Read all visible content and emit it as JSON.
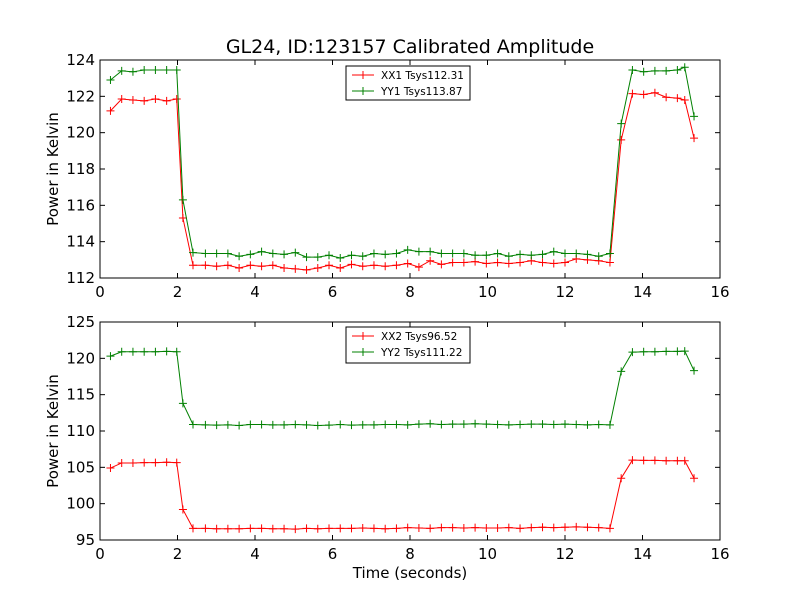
{
  "figure": {
    "title": "GL24, ID:123157 Calibrated Amplitude"
  },
  "chart_data": [
    {
      "type": "line",
      "ylabel": "Power in Kelvin",
      "xlabel": "",
      "xlim": [
        0,
        16
      ],
      "ylim": [
        112,
        124
      ],
      "xticks": [
        0,
        2,
        4,
        6,
        8,
        10,
        12,
        14,
        16
      ],
      "yticks": [
        112,
        114,
        116,
        118,
        120,
        122,
        124
      ],
      "legend_position": "top-center",
      "x": [
        0.27,
        0.56,
        0.85,
        1.14,
        1.43,
        1.72,
        1.98,
        2.14,
        2.4,
        2.72,
        3.01,
        3.3,
        3.59,
        3.88,
        4.17,
        4.46,
        4.75,
        5.04,
        5.33,
        5.62,
        5.91,
        6.2,
        6.49,
        6.78,
        7.07,
        7.36,
        7.65,
        7.94,
        8.23,
        8.52,
        8.81,
        9.1,
        9.39,
        9.68,
        9.97,
        10.26,
        10.55,
        10.84,
        11.13,
        11.42,
        11.71,
        12.0,
        12.29,
        12.58,
        12.87,
        13.16,
        13.45,
        13.74,
        14.03,
        14.32,
        14.61,
        14.9,
        15.09,
        15.33
      ],
      "series": [
        {
          "name": "XX1 Tsys112.31",
          "color": "#ff0000",
          "values": [
            121.2,
            121.85,
            121.8,
            121.75,
            121.85,
            121.75,
            121.85,
            115.3,
            112.7,
            112.7,
            112.65,
            112.7,
            112.55,
            112.7,
            112.65,
            112.7,
            112.55,
            112.5,
            112.45,
            112.55,
            112.7,
            112.55,
            112.75,
            112.65,
            112.7,
            112.65,
            112.7,
            112.8,
            112.6,
            112.95,
            112.75,
            112.85,
            112.85,
            112.9,
            112.8,
            112.85,
            112.8,
            112.85,
            112.95,
            112.85,
            112.8,
            112.85,
            113.05,
            113.0,
            112.95,
            112.85,
            119.6,
            122.15,
            122.1,
            122.2,
            121.95,
            121.9,
            121.8,
            119.7
          ]
        },
        {
          "name": "YY1 Tsys113.87",
          "color": "#008000",
          "values": [
            122.9,
            123.4,
            123.35,
            123.45,
            123.45,
            123.45,
            123.45,
            116.3,
            113.4,
            113.35,
            113.35,
            113.35,
            113.2,
            113.3,
            113.45,
            113.35,
            113.3,
            113.4,
            113.15,
            113.15,
            113.25,
            113.1,
            113.25,
            113.2,
            113.35,
            113.3,
            113.35,
            113.55,
            113.45,
            113.45,
            113.35,
            113.35,
            113.35,
            113.25,
            113.25,
            113.35,
            113.2,
            113.3,
            113.25,
            113.3,
            113.45,
            113.35,
            113.35,
            113.3,
            113.2,
            113.35,
            120.5,
            123.45,
            123.35,
            123.4,
            123.4,
            123.45,
            123.6,
            120.9
          ]
        }
      ]
    },
    {
      "type": "line",
      "ylabel": "Power in Kelvin",
      "xlabel": "Time (seconds)",
      "xlim": [
        0,
        16
      ],
      "ylim": [
        95,
        125
      ],
      "xticks": [
        0,
        2,
        4,
        6,
        8,
        10,
        12,
        14,
        16
      ],
      "yticks": [
        95,
        100,
        105,
        110,
        115,
        120,
        125
      ],
      "legend_position": "top-center",
      "x": [
        0.27,
        0.56,
        0.85,
        1.14,
        1.43,
        1.72,
        1.98,
        2.14,
        2.4,
        2.72,
        3.01,
        3.3,
        3.59,
        3.88,
        4.17,
        4.46,
        4.75,
        5.04,
        5.33,
        5.62,
        5.91,
        6.2,
        6.49,
        6.78,
        7.07,
        7.36,
        7.65,
        7.94,
        8.23,
        8.52,
        8.81,
        9.1,
        9.39,
        9.68,
        9.97,
        10.26,
        10.55,
        10.84,
        11.13,
        11.42,
        11.71,
        12.0,
        12.29,
        12.58,
        12.87,
        13.16,
        13.45,
        13.74,
        14.03,
        14.32,
        14.61,
        14.9,
        15.09,
        15.33
      ],
      "series": [
        {
          "name": "XX2 Tsys96.52",
          "color": "#ff0000",
          "values": [
            104.9,
            105.6,
            105.6,
            105.65,
            105.65,
            105.7,
            105.65,
            99.2,
            96.6,
            96.6,
            96.55,
            96.55,
            96.55,
            96.6,
            96.6,
            96.55,
            96.55,
            96.5,
            96.6,
            96.55,
            96.6,
            96.6,
            96.6,
            96.65,
            96.6,
            96.55,
            96.6,
            96.7,
            96.65,
            96.6,
            96.7,
            96.7,
            96.65,
            96.7,
            96.65,
            96.65,
            96.7,
            96.6,
            96.7,
            96.75,
            96.7,
            96.75,
            96.8,
            96.75,
            96.7,
            96.6,
            103.5,
            106.0,
            105.95,
            105.95,
            105.9,
            105.9,
            105.9,
            103.5
          ]
        },
        {
          "name": "YY2 Tsys111.22",
          "color": "#008000",
          "values": [
            120.3,
            120.9,
            120.9,
            120.9,
            120.9,
            120.95,
            120.9,
            113.8,
            110.9,
            110.85,
            110.8,
            110.85,
            110.75,
            110.9,
            110.9,
            110.85,
            110.85,
            110.9,
            110.85,
            110.75,
            110.8,
            110.9,
            110.8,
            110.85,
            110.85,
            110.9,
            110.9,
            110.85,
            110.95,
            111.0,
            110.9,
            110.95,
            110.95,
            111.0,
            110.95,
            110.9,
            110.85,
            110.9,
            110.95,
            110.95,
            110.9,
            110.95,
            110.9,
            110.85,
            110.9,
            110.85,
            118.2,
            120.85,
            120.9,
            120.9,
            120.95,
            120.95,
            121.0,
            118.3
          ]
        }
      ]
    }
  ]
}
